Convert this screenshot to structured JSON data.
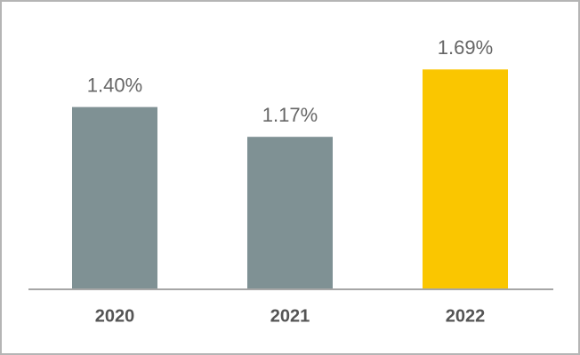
{
  "chart_data": {
    "type": "bar",
    "categories": [
      "2020",
      "2021",
      "2022"
    ],
    "values": [
      1.4,
      1.17,
      1.69
    ],
    "value_labels": [
      "1.40%",
      "1.17%",
      "1.69%"
    ],
    "colors": [
      "#7f9194",
      "#7f9194",
      "#fac600"
    ],
    "ylim": [
      0,
      2
    ]
  }
}
